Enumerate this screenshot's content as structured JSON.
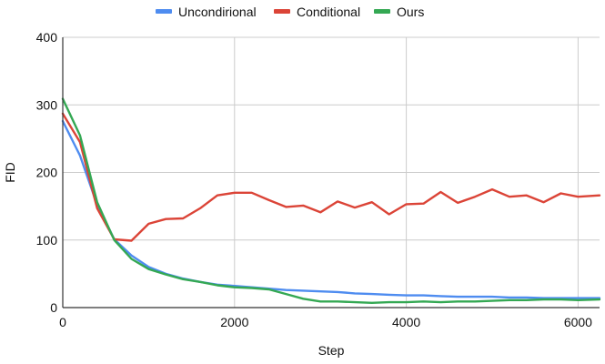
{
  "chart_data": {
    "type": "line",
    "title": "",
    "xlabel": "Step",
    "ylabel": "FID",
    "xlim": [
      0,
      6250
    ],
    "ylim": [
      0,
      400
    ],
    "x_ticks": [
      0,
      2000,
      4000,
      6000
    ],
    "y_ticks": [
      0,
      100,
      200,
      300,
      400
    ],
    "grid": true,
    "legend_position": "top",
    "series": [
      {
        "name": "Uncondirional",
        "color": "#4e8cf0",
        "x": [
          0,
          200,
          400,
          600,
          800,
          1000,
          1200,
          1400,
          1600,
          1800,
          2000,
          2200,
          2400,
          2600,
          2800,
          3000,
          3200,
          3400,
          3600,
          3800,
          4000,
          4200,
          4400,
          4600,
          4800,
          5000,
          5200,
          5400,
          5600,
          5800,
          6000,
          6250
        ],
        "y": [
          276,
          225,
          152,
          101,
          77,
          60,
          50,
          43,
          38,
          34,
          32,
          30,
          28,
          26,
          25,
          24,
          23,
          21,
          20,
          19,
          18,
          18,
          17,
          16,
          16,
          16,
          15,
          15,
          14,
          14,
          14,
          14
        ]
      },
      {
        "name": "Conditional",
        "color": "#db4437",
        "x": [
          0,
          200,
          400,
          600,
          800,
          1000,
          1200,
          1400,
          1600,
          1800,
          2000,
          2200,
          2400,
          2600,
          2800,
          3000,
          3200,
          3400,
          3600,
          3800,
          4000,
          4200,
          4400,
          4600,
          4800,
          5000,
          5200,
          5400,
          5600,
          5800,
          6000,
          6250
        ],
        "y": [
          287,
          245,
          147,
          101,
          99,
          124,
          131,
          132,
          147,
          166,
          170,
          170,
          159,
          149,
          151,
          141,
          157,
          148,
          156,
          138,
          153,
          154,
          171,
          155,
          164,
          175,
          164,
          166,
          156,
          169,
          164,
          166
        ]
      },
      {
        "name": "Ours",
        "color": "#34a853",
        "x": [
          0,
          200,
          400,
          600,
          800,
          1000,
          1200,
          1400,
          1600,
          1800,
          2000,
          2200,
          2400,
          2600,
          2800,
          3000,
          3200,
          3400,
          3600,
          3800,
          4000,
          4200,
          4400,
          4600,
          4800,
          5000,
          5200,
          5400,
          5600,
          5800,
          6000,
          6250
        ],
        "y": [
          309,
          255,
          156,
          100,
          72,
          57,
          49,
          42,
          38,
          33,
          30,
          29,
          27,
          20,
          13,
          9,
          9,
          8,
          7,
          8,
          8,
          9,
          8,
          9,
          9,
          10,
          11,
          11,
          12,
          12,
          11,
          12
        ]
      }
    ]
  }
}
